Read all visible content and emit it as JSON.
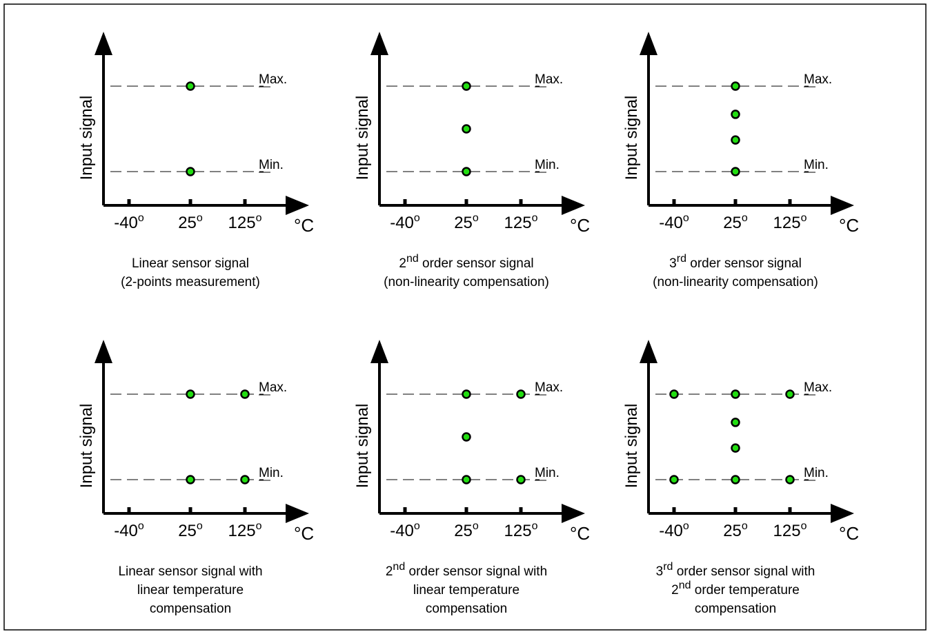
{
  "common": {
    "y_axis_label": "Input signal",
    "x_unit": "°C",
    "x_ticks": [
      {
        "value": "-40",
        "suffix": "o"
      },
      {
        "value": "25",
        "suffix": "o"
      },
      {
        "value": "125",
        "suffix": "o"
      }
    ],
    "level_max": "Max.",
    "level_min": "Min.",
    "point_color": "#22dd11"
  },
  "panels": [
    {
      "id": "linear-2pt",
      "caption": [
        [
          {
            "t": "Linear sensor signal"
          }
        ],
        [
          {
            "t": "(2-points measurement)"
          }
        ]
      ],
      "points": [
        {
          "temp": 25,
          "level": 1
        },
        {
          "temp": 25,
          "level": 0
        }
      ]
    },
    {
      "id": "second-order",
      "caption": [
        [
          {
            "t": "2"
          },
          {
            "t": "nd",
            "sup": true
          },
          {
            "t": " order sensor signal"
          }
        ],
        [
          {
            "t": "(non-linearity compensation)"
          }
        ]
      ],
      "points": [
        {
          "temp": 25,
          "level": 1
        },
        {
          "temp": 25,
          "level": 0.5
        },
        {
          "temp": 25,
          "level": 0
        }
      ]
    },
    {
      "id": "third-order",
      "caption": [
        [
          {
            "t": "3"
          },
          {
            "t": "rd",
            "sup": true
          },
          {
            "t": " order sensor signal"
          }
        ],
        [
          {
            "t": "(non-linearity compensation)"
          }
        ]
      ],
      "points": [
        {
          "temp": 25,
          "level": 1
        },
        {
          "temp": 25,
          "level": 0.67
        },
        {
          "temp": 25,
          "level": 0.37
        },
        {
          "temp": 25,
          "level": 0
        }
      ]
    },
    {
      "id": "linear-lin-temp",
      "caption": [
        [
          {
            "t": "Linear sensor signal with"
          }
        ],
        [
          {
            "t": "linear temperature"
          }
        ],
        [
          {
            "t": "compensation"
          }
        ]
      ],
      "points": [
        {
          "temp": 25,
          "level": 1
        },
        {
          "temp": 125,
          "level": 1
        },
        {
          "temp": 25,
          "level": 0
        },
        {
          "temp": 125,
          "level": 0
        }
      ]
    },
    {
      "id": "second-order-lin-temp",
      "caption": [
        [
          {
            "t": "2"
          },
          {
            "t": "nd",
            "sup": true
          },
          {
            "t": " order sensor signal with"
          }
        ],
        [
          {
            "t": "linear temperature"
          }
        ],
        [
          {
            "t": "compensation"
          }
        ]
      ],
      "points": [
        {
          "temp": 25,
          "level": 1
        },
        {
          "temp": 125,
          "level": 1
        },
        {
          "temp": 25,
          "level": 0.5
        },
        {
          "temp": 25,
          "level": 0
        },
        {
          "temp": 125,
          "level": 0
        }
      ]
    },
    {
      "id": "third-order-2nd-temp",
      "caption": [
        [
          {
            "t": "3"
          },
          {
            "t": "rd",
            "sup": true
          },
          {
            "t": " order sensor signal with"
          }
        ],
        [
          {
            "t": "2"
          },
          {
            "t": "nd",
            "sup": true
          },
          {
            "t": " order temperature"
          }
        ],
        [
          {
            "t": "compensation"
          }
        ]
      ],
      "points": [
        {
          "temp": -40,
          "level": 1
        },
        {
          "temp": 25,
          "level": 1
        },
        {
          "temp": 125,
          "level": 1
        },
        {
          "temp": 25,
          "level": 0.67
        },
        {
          "temp": 25,
          "level": 0.37
        },
        {
          "temp": -40,
          "level": 0
        },
        {
          "temp": 25,
          "level": 0
        },
        {
          "temp": 125,
          "level": 0
        }
      ]
    }
  ]
}
